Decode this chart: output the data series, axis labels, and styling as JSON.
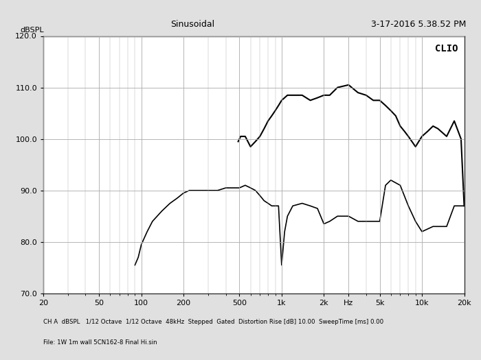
{
  "title_left": "Sinusoidal",
  "title_right": "3-17-2016 5.38.52 PM",
  "clio_label": "CLIO",
  "ylabel": "dBSPL",
  "xlabel_ticks": [
    20,
    50,
    100,
    200,
    500,
    1000,
    2000,
    3000,
    5000,
    10000,
    20000
  ],
  "xlabel_labels": [
    "20",
    "50",
    "100",
    "200",
    "500",
    "1k",
    "2k",
    "Hz",
    "5k",
    "10k",
    "20k"
  ],
  "xlim": [
    20,
    20000
  ],
  "ylim": [
    70,
    120
  ],
  "yticks": [
    70,
    80,
    90,
    100,
    110,
    120
  ],
  "footer_line1": "CH A  dBSPL   1/12 Octave  1/12 Octave  48kHz  Stepped  Gated  Distortion Rise [dB] 10.00  SweepTime [ms] 0.00",
  "footer_line2": "File: 1W 1m wall 5CN162-8 Final Hi.sin",
  "bg_color": "#e0e0e0",
  "plot_bg_color": "#ffffff",
  "line_color": "#000000",
  "grid_color": "#aaaaaa",
  "curve1_x": [
    90,
    95,
    100,
    110,
    120,
    140,
    160,
    180,
    200,
    220,
    250,
    280,
    300,
    350,
    400,
    450,
    500,
    550,
    600,
    650,
    700,
    750,
    800,
    850,
    900,
    950,
    1000,
    1050,
    1100,
    1200,
    1400,
    1600,
    1800,
    2000,
    2200,
    2500,
    3000,
    3500,
    4000,
    4500,
    5000,
    5500,
    6000,
    7000,
    8000,
    9000,
    10000,
    12000,
    15000,
    17000,
    20000
  ],
  "curve1_y": [
    75.5,
    77.0,
    79.5,
    82.0,
    84.0,
    86.0,
    87.5,
    88.5,
    89.5,
    90.0,
    90.0,
    90.0,
    90.0,
    90.0,
    90.5,
    90.5,
    90.5,
    91.0,
    90.5,
    90.0,
    89.0,
    88.0,
    87.5,
    87.0,
    87.0,
    87.0,
    75.5,
    82.0,
    85.0,
    87.0,
    87.5,
    87.0,
    86.5,
    83.5,
    84.0,
    85.0,
    85.0,
    84.0,
    84.0,
    84.0,
    84.0,
    91.0,
    92.0,
    91.0,
    87.0,
    84.0,
    82.0,
    83.0,
    83.0,
    87.0,
    87.0
  ],
  "curve2_x": [
    490,
    510,
    550,
    600,
    650,
    700,
    750,
    800,
    850,
    900,
    950,
    1000,
    1100,
    1200,
    1400,
    1600,
    1800,
    2000,
    2200,
    2500,
    3000,
    3500,
    4000,
    4500,
    5000,
    5500,
    6000,
    6500,
    7000,
    7500,
    8000,
    9000,
    10000,
    11000,
    12000,
    13000,
    15000,
    17000,
    19000,
    20000
  ],
  "curve2_y": [
    99.5,
    100.5,
    100.5,
    98.5,
    99.5,
    100.5,
    102.0,
    103.5,
    104.5,
    105.5,
    106.5,
    107.5,
    108.5,
    108.5,
    108.5,
    107.5,
    108.0,
    108.5,
    108.5,
    110.0,
    110.5,
    109.0,
    108.5,
    107.5,
    107.5,
    106.5,
    105.5,
    104.5,
    102.5,
    101.5,
    100.5,
    98.5,
    100.5,
    101.5,
    102.5,
    102.0,
    100.5,
    103.5,
    100.0,
    87.0
  ]
}
